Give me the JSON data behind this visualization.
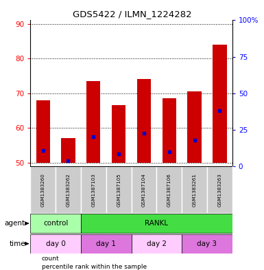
{
  "title": "GDS5422 / ILMN_1224282",
  "samples": [
    "GSM1383260",
    "GSM1383262",
    "GSM1387103",
    "GSM1387105",
    "GSM1387104",
    "GSM1387106",
    "GSM1383261",
    "GSM1383263"
  ],
  "bar_tops": [
    68.0,
    57.0,
    73.5,
    66.5,
    74.0,
    68.5,
    70.5,
    84.0
  ],
  "bar_bottom": 50,
  "percentile_values": [
    53.5,
    50.5,
    57.5,
    52.5,
    58.5,
    53.0,
    56.5,
    65.0
  ],
  "ylim_left": [
    49,
    91
  ],
  "ylim_right": [
    0,
    100
  ],
  "yticks_left": [
    50,
    60,
    70,
    80,
    90
  ],
  "yticks_right": [
    0,
    25,
    50,
    75,
    100
  ],
  "yticklabels_right": [
    "0",
    "25",
    "50",
    "75",
    "100%"
  ],
  "bar_color": "#cc0000",
  "percentile_color": "#0000cc",
  "plot_bg_color": "#ffffff",
  "agent_row": {
    "label": "agent",
    "groups": [
      {
        "text": "control",
        "color": "#aaffaa",
        "start": 0,
        "end": 2
      },
      {
        "text": "RANKL",
        "color": "#44dd44",
        "start": 2,
        "end": 8
      }
    ]
  },
  "time_row": {
    "label": "time",
    "groups": [
      {
        "text": "day 0",
        "color": "#ffccff",
        "start": 0,
        "end": 2
      },
      {
        "text": "day 1",
        "color": "#dd77dd",
        "start": 2,
        "end": 4
      },
      {
        "text": "day 2",
        "color": "#ffccff",
        "start": 4,
        "end": 6
      },
      {
        "text": "day 3",
        "color": "#dd77dd",
        "start": 6,
        "end": 8
      }
    ]
  },
  "legend_items": [
    {
      "label": "count",
      "color": "#cc0000"
    },
    {
      "label": "percentile rank within the sample",
      "color": "#0000cc"
    }
  ],
  "grid_color": "#000000",
  "gsm_bg": "#cccccc",
  "gsm_sep": "#ffffff"
}
